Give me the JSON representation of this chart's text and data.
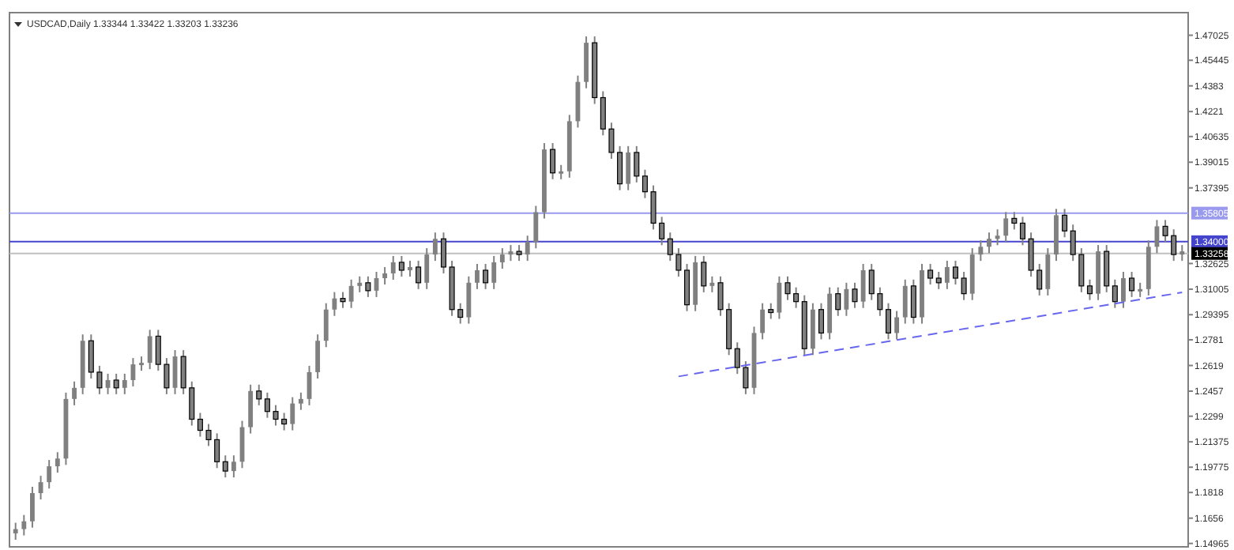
{
  "chart_data": {
    "type": "candlestick",
    "title": "USDCAD,Daily  1.33344 1.33422 1.33203 1.33236",
    "tick_labels": "y",
    "grid": false,
    "categories": [
      null,
      null,
      null,
      null,
      null,
      null,
      null,
      null,
      null,
      null,
      null,
      null,
      null,
      null,
      null,
      null,
      null,
      null,
      null,
      null,
      null,
      null,
      null,
      null,
      null,
      null,
      null,
      null,
      null,
      null,
      null,
      null,
      null,
      null,
      null,
      null,
      null,
      null,
      null,
      null,
      null,
      null,
      null,
      null,
      null,
      null,
      null,
      null,
      null,
      null,
      null,
      null,
      null,
      null,
      null,
      null,
      null,
      null,
      null,
      null,
      null,
      null,
      null,
      null,
      null,
      null,
      null,
      null,
      null,
      null,
      null,
      null,
      null,
      null,
      null,
      null,
      null,
      null,
      null,
      null,
      null,
      null,
      null,
      null,
      null,
      null,
      null,
      null,
      null,
      null,
      null,
      null,
      null,
      null,
      null,
      null,
      null,
      null,
      null,
      null,
      null,
      null,
      null,
      null,
      null,
      null,
      null,
      null,
      null,
      null,
      null,
      null,
      null,
      null,
      null,
      null,
      null,
      null,
      null,
      null,
      null,
      null,
      null,
      null,
      null,
      null,
      null,
      null,
      null,
      null,
      null,
      null,
      null,
      null,
      null,
      null,
      null,
      null,
      null,
      null
    ],
    "ylim": [
      1.1475,
      1.4845
    ],
    "yticks": [
      1.14965,
      1.1656,
      1.1818,
      1.19775,
      1.21375,
      1.2299,
      1.2457,
      1.2619,
      1.2781,
      1.29395,
      1.31005,
      1.32625,
      1.37395,
      1.39015,
      1.40635,
      1.4221,
      1.4383,
      1.45445,
      1.47025
    ],
    "ref_lines": [
      {
        "axis": "y",
        "value": 1.35805,
        "label": "1.35805",
        "color": "#9999ee"
      },
      {
        "axis": "y",
        "value": 1.34,
        "label": "1.34000",
        "color": "#4444cc"
      },
      {
        "axis": "y",
        "value": 1.33258,
        "label": "1.33258",
        "color": "#c0c0c0"
      }
    ],
    "series": [
      {
        "color": "#808080",
        "ohlc": [
          [
            1.156,
            1.1627,
            1.152,
            1.1587
          ],
          [
            1.1587,
            1.1676,
            1.1547,
            1.1636
          ],
          [
            1.1636,
            1.1854,
            1.1596,
            1.1814
          ],
          [
            1.1814,
            1.1923,
            1.1774,
            1.1883
          ],
          [
            1.1883,
            1.2023,
            1.1843,
            1.1983
          ],
          [
            1.1983,
            1.2072,
            1.1943,
            1.2032
          ],
          [
            1.2032,
            1.2448,
            1.1992,
            1.2408
          ],
          [
            1.2408,
            1.2518,
            1.2368,
            1.2478
          ],
          [
            1.2478,
            1.2815,
            1.2438,
            1.2775
          ],
          [
            1.2775,
            1.2815,
            1.2537,
            1.2577
          ],
          [
            1.2577,
            1.2617,
            1.2438,
            1.2478
          ],
          [
            1.2478,
            1.2567,
            1.2438,
            1.2527
          ],
          [
            1.2527,
            1.2567,
            1.2438,
            1.2478
          ],
          [
            1.2478,
            1.2567,
            1.2438,
            1.2527
          ],
          [
            1.2527,
            1.2666,
            1.2487,
            1.2626
          ],
          [
            1.2626,
            1.2676,
            1.2586,
            1.2636
          ],
          [
            1.2636,
            1.2844,
            1.2596,
            1.2804
          ],
          [
            1.2804,
            1.2844,
            1.2586,
            1.2626
          ],
          [
            1.2626,
            1.2666,
            1.2438,
            1.2478
          ],
          [
            1.2478,
            1.2716,
            1.2438,
            1.2676
          ],
          [
            1.2676,
            1.2716,
            1.2438,
            1.2478
          ],
          [
            1.2478,
            1.2518,
            1.224,
            1.228
          ],
          [
            1.228,
            1.232,
            1.217,
            1.221
          ],
          [
            1.221,
            1.225,
            1.2111,
            1.2151
          ],
          [
            1.2151,
            1.2191,
            1.1972,
            1.2012
          ],
          [
            1.2012,
            1.2052,
            1.1913,
            1.1953
          ],
          [
            1.1953,
            1.2052,
            1.1913,
            1.2012
          ],
          [
            1.2012,
            1.227,
            1.1972,
            1.223
          ],
          [
            1.223,
            1.2498,
            1.219,
            1.2458
          ],
          [
            1.2458,
            1.2498,
            1.2368,
            1.2408
          ],
          [
            1.2408,
            1.2448,
            1.2289,
            1.2329
          ],
          [
            1.2329,
            1.2369,
            1.224,
            1.228
          ],
          [
            1.228,
            1.232,
            1.221,
            1.225
          ],
          [
            1.225,
            1.2419,
            1.221,
            1.2379
          ],
          [
            1.2379,
            1.2448,
            1.2339,
            1.2408
          ],
          [
            1.2408,
            1.2617,
            1.2368,
            1.2577
          ],
          [
            1.2577,
            1.2815,
            1.2537,
            1.2775
          ],
          [
            1.2775,
            1.3012,
            1.2735,
            1.2972
          ],
          [
            1.2972,
            1.3082,
            1.2932,
            1.3042
          ],
          [
            1.3042,
            1.3082,
            1.2982,
            1.3022
          ],
          [
            1.3022,
            1.3161,
            1.2982,
            1.3121
          ],
          [
            1.3121,
            1.3181,
            1.3081,
            1.3141
          ],
          [
            1.3141,
            1.3181,
            1.3051,
            1.3091
          ],
          [
            1.3091,
            1.321,
            1.3051,
            1.317
          ],
          [
            1.317,
            1.324,
            1.313,
            1.32
          ],
          [
            1.32,
            1.331,
            1.316,
            1.327
          ],
          [
            1.327,
            1.331,
            1.318,
            1.322
          ],
          [
            1.322,
            1.328,
            1.318,
            1.324
          ],
          [
            1.324,
            1.328,
            1.3101,
            1.3141
          ],
          [
            1.3141,
            1.3359,
            1.3101,
            1.3319
          ],
          [
            1.3319,
            1.3458,
            1.3279,
            1.3418
          ],
          [
            1.3418,
            1.3458,
            1.32,
            1.324
          ],
          [
            1.324,
            1.328,
            1.2932,
            1.2972
          ],
          [
            1.2972,
            1.3012,
            1.2883,
            1.2923
          ],
          [
            1.2923,
            1.3181,
            1.2883,
            1.3141
          ],
          [
            1.3141,
            1.326,
            1.3101,
            1.322
          ],
          [
            1.322,
            1.326,
            1.3101,
            1.3141
          ],
          [
            1.3141,
            1.331,
            1.3101,
            1.327
          ],
          [
            1.327,
            1.3359,
            1.323,
            1.3319
          ],
          [
            1.3319,
            1.3379,
            1.3279,
            1.3339
          ],
          [
            1.3339,
            1.3379,
            1.3279,
            1.3319
          ],
          [
            1.3319,
            1.3438,
            1.3279,
            1.3398
          ],
          [
            1.3398,
            1.3626,
            1.3358,
            1.3586
          ],
          [
            1.3586,
            1.4022,
            1.3546,
            1.3982
          ],
          [
            1.3982,
            1.4022,
            1.3794,
            1.3834
          ],
          [
            1.3834,
            1.3884,
            1.3794,
            1.3844
          ],
          [
            1.3844,
            1.42,
            1.3804,
            1.416
          ],
          [
            1.416,
            1.4448,
            1.412,
            1.4408
          ],
          [
            1.4408,
            1.4695,
            1.4368,
            1.4655
          ],
          [
            1.4655,
            1.4695,
            1.4269,
            1.4309
          ],
          [
            1.4309,
            1.4349,
            1.4071,
            1.4111
          ],
          [
            1.4111,
            1.4151,
            1.3923,
            1.3963
          ],
          [
            1.3963,
            1.4003,
            1.3725,
            1.3765
          ],
          [
            1.3765,
            1.4003,
            1.3725,
            1.3963
          ],
          [
            1.3963,
            1.4003,
            1.3774,
            1.3814
          ],
          [
            1.3814,
            1.3854,
            1.3675,
            1.3715
          ],
          [
            1.3715,
            1.3755,
            1.3477,
            1.3517
          ],
          [
            1.3517,
            1.3557,
            1.3378,
            1.3418
          ],
          [
            1.3418,
            1.3458,
            1.3279,
            1.3319
          ],
          [
            1.3319,
            1.3359,
            1.318,
            1.322
          ],
          [
            1.322,
            1.326,
            1.2962,
            1.3002
          ],
          [
            1.3002,
            1.331,
            1.2962,
            1.327
          ],
          [
            1.327,
            1.331,
            1.3081,
            1.3121
          ],
          [
            1.3121,
            1.3181,
            1.3081,
            1.3141
          ],
          [
            1.3141,
            1.3181,
            1.2932,
            1.2972
          ],
          [
            1.2972,
            1.3012,
            1.2685,
            1.2725
          ],
          [
            1.2725,
            1.2765,
            1.2566,
            1.2606
          ],
          [
            1.2606,
            1.2646,
            1.2438,
            1.2478
          ],
          [
            1.2478,
            1.2864,
            1.2438,
            1.2824
          ],
          [
            1.2824,
            1.3012,
            1.2784,
            1.2972
          ],
          [
            1.2972,
            1.3012,
            1.2913,
            1.2953
          ],
          [
            1.2953,
            1.3181,
            1.2913,
            1.3141
          ],
          [
            1.3141,
            1.3181,
            1.3032,
            1.3072
          ],
          [
            1.3072,
            1.3112,
            1.2982,
            1.3022
          ],
          [
            1.3022,
            1.3062,
            1.2685,
            1.2725
          ],
          [
            1.2725,
            1.3012,
            1.2685,
            1.2972
          ],
          [
            1.2972,
            1.3012,
            1.2784,
            1.2824
          ],
          [
            1.2824,
            1.3112,
            1.2784,
            1.3072
          ],
          [
            1.3072,
            1.3112,
            1.2932,
            1.2972
          ],
          [
            1.2972,
            1.3141,
            1.2932,
            1.3101
          ],
          [
            1.3101,
            1.3141,
            1.2982,
            1.3022
          ],
          [
            1.3022,
            1.326,
            1.2982,
            1.322
          ],
          [
            1.322,
            1.326,
            1.3032,
            1.3072
          ],
          [
            1.3072,
            1.3112,
            1.2932,
            1.2972
          ],
          [
            1.2972,
            1.3012,
            1.2784,
            1.2824
          ],
          [
            1.2824,
            1.2963,
            1.2784,
            1.2923
          ],
          [
            1.2923,
            1.3161,
            1.2883,
            1.3121
          ],
          [
            1.3121,
            1.3161,
            1.2883,
            1.2923
          ],
          [
            1.2923,
            1.326,
            1.2883,
            1.322
          ],
          [
            1.322,
            1.326,
            1.313,
            1.317
          ],
          [
            1.317,
            1.321,
            1.3101,
            1.3141
          ],
          [
            1.3141,
            1.328,
            1.3101,
            1.324
          ],
          [
            1.324,
            1.328,
            1.313,
            1.317
          ],
          [
            1.317,
            1.321,
            1.3032,
            1.3072
          ],
          [
            1.3072,
            1.3359,
            1.3032,
            1.3319
          ],
          [
            1.3319,
            1.3408,
            1.3279,
            1.3368
          ],
          [
            1.3368,
            1.3458,
            1.3328,
            1.3418
          ],
          [
            1.3418,
            1.3478,
            1.3378,
            1.3438
          ],
          [
            1.3438,
            1.3587,
            1.3398,
            1.3547
          ],
          [
            1.3547,
            1.3587,
            1.3477,
            1.3517
          ],
          [
            1.3517,
            1.3557,
            1.3378,
            1.3418
          ],
          [
            1.3418,
            1.3458,
            1.318,
            1.322
          ],
          [
            1.322,
            1.326,
            1.3061,
            1.3101
          ],
          [
            1.3101,
            1.3359,
            1.3061,
            1.3319
          ],
          [
            1.3319,
            1.3607,
            1.3279,
            1.3567
          ],
          [
            1.3567,
            1.3607,
            1.3428,
            1.3468
          ],
          [
            1.3468,
            1.3508,
            1.3279,
            1.3319
          ],
          [
            1.3319,
            1.3359,
            1.3081,
            1.3121
          ],
          [
            1.3121,
            1.3161,
            1.3032,
            1.3072
          ],
          [
            1.3072,
            1.3379,
            1.3032,
            1.3339
          ],
          [
            1.3339,
            1.3379,
            1.3081,
            1.3121
          ],
          [
            1.3121,
            1.3161,
            1.2982,
            1.3022
          ],
          [
            1.3022,
            1.321,
            1.2982,
            1.317
          ],
          [
            1.317,
            1.321,
            1.3051,
            1.3091
          ],
          [
            1.3091,
            1.3141,
            1.3051,
            1.3101
          ],
          [
            1.3101,
            1.3408,
            1.3061,
            1.3368
          ],
          [
            1.3368,
            1.3537,
            1.3328,
            1.3497
          ],
          [
            1.3497,
            1.3537,
            1.3398,
            1.3438
          ],
          [
            1.3438,
            1.3478,
            1.3279,
            1.3319
          ],
          [
            1.3319,
            1.3379,
            1.3279,
            1.3339
          ]
        ]
      },
      {
        "type": "line",
        "color": "#6666ee",
        "line_style": "dashed",
        "values": [
          null,
          null,
          null,
          null,
          null,
          null,
          null,
          null,
          null,
          null,
          null,
          null,
          null,
          null,
          null,
          null,
          null,
          null,
          null,
          null,
          null,
          null,
          null,
          null,
          null,
          null,
          null,
          null,
          null,
          null,
          null,
          null,
          null,
          null,
          null,
          null,
          null,
          null,
          null,
          null,
          null,
          null,
          null,
          null,
          null,
          null,
          null,
          null,
          null,
          null,
          null,
          null,
          null,
          null,
          null,
          null,
          null,
          null,
          null,
          null,
          null,
          null,
          null,
          null,
          null,
          null,
          null,
          null,
          null,
          null,
          null,
          null,
          null,
          null,
          null,
          null,
          null,
          null,
          null,
          1.255,
          null,
          null,
          null,
          null,
          null,
          null,
          null,
          null,
          null,
          null,
          null,
          null,
          null,
          null,
          null,
          null,
          null,
          null,
          null,
          null,
          null,
          null,
          null,
          null,
          null,
          null,
          null,
          null,
          null,
          null,
          null,
          null,
          null,
          null,
          null,
          null,
          null,
          null,
          null,
          null,
          null,
          null,
          null,
          null,
          null,
          null,
          null,
          null,
          null,
          null,
          null,
          null,
          null,
          null,
          null,
          null,
          null,
          null,
          null,
          1.308
        ]
      }
    ]
  }
}
